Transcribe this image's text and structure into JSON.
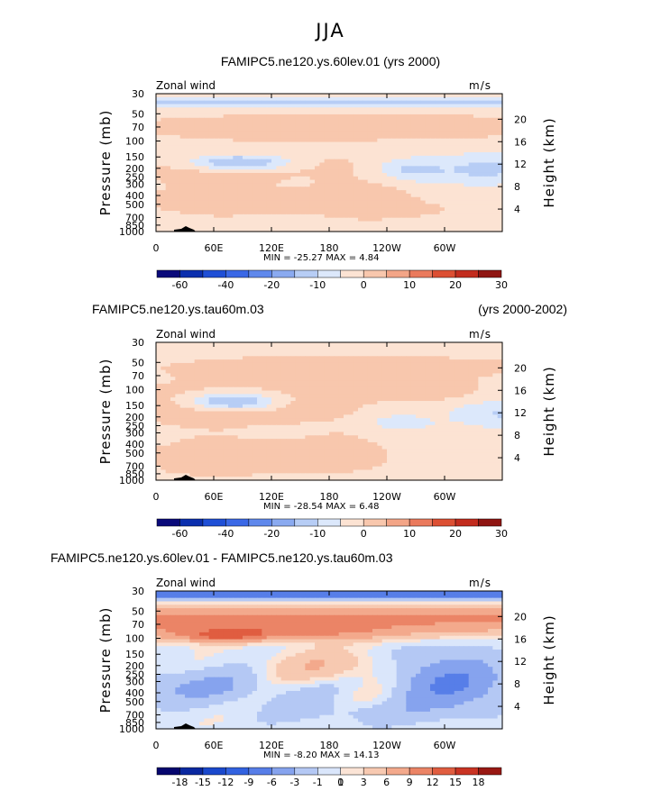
{
  "figure": {
    "title": "JJA",
    "colors": {
      "background": "#ffffff",
      "axis": "#000000",
      "topography": "#000000"
    }
  },
  "palettes": {
    "abs": [
      "#0a0a7a",
      "#0b2fae",
      "#1f4fd6",
      "#3a68e6",
      "#5f88ec",
      "#8aaaf0",
      "#b7cdf5",
      "#dce8fb",
      "#fce3d3",
      "#f8c7ad",
      "#f3a587",
      "#ea7a5d",
      "#dc4f33",
      "#c22c1e",
      "#8f1512"
    ],
    "diff": [
      "#06066e",
      "#0a28a0",
      "#1a48cc",
      "#3262e0",
      "#577ee8",
      "#86a3ee",
      "#b4c8f4",
      "#dae6fb",
      "#fbe4d6",
      "#f7c9b1",
      "#f3a98c",
      "#eb8466",
      "#e05d40",
      "#c93323",
      "#991813"
    ]
  },
  "chart_data": [
    {
      "type": "contour",
      "panel": "FAMIPC5.ne120.ys.60lev.01",
      "title": "FAMIPC5.ne120.ys.60lev.01 (yrs 2000)",
      "title_left": "",
      "title_right": "",
      "variable": "Zonal wind",
      "units": "m/s",
      "ylabel": "Pressure (mb)",
      "ylabel_right": "Height (km)",
      "x_ticks": [
        "0",
        "60E",
        "120E",
        "180",
        "120W",
        "60W"
      ],
      "x_tick_values": [
        0,
        60,
        120,
        180,
        240,
        300
      ],
      "xlim": [
        0,
        360
      ],
      "pressure_ticks": [
        "30",
        "50",
        "70",
        "100",
        "150",
        "200",
        "250",
        "300",
        "400",
        "500",
        "700",
        "850",
        "1000"
      ],
      "pressure_values": [
        30,
        50,
        70,
        100,
        150,
        200,
        250,
        300,
        400,
        500,
        700,
        850,
        1000
      ],
      "height_ticks": [
        "20",
        "16",
        "12",
        "8",
        "4"
      ],
      "height_values": [
        20,
        16,
        12,
        8,
        4
      ],
      "ylim": [
        1000,
        30
      ],
      "min_label": "MIN =  -25.27   MAX =    4.84",
      "min": -25.27,
      "max": 4.84,
      "palette": "abs",
      "colorbar_labels": [
        "-60",
        "-40",
        "-20",
        "-10",
        "0",
        "10",
        "20",
        "30"
      ],
      "colorbar_label_bins": [
        1,
        3,
        5,
        7,
        9,
        11,
        13,
        15
      ],
      "colorbar_levels": [
        -70,
        -60,
        -50,
        -40,
        -30,
        -20,
        -15,
        -10,
        -5,
        0,
        5,
        10,
        15,
        20,
        25,
        30
      ]
    },
    {
      "type": "contour",
      "panel": "FAMIPC5.ne120.ys.tau60m.03",
      "title": "",
      "title_left": "FAMIPC5.ne120.ys.tau60m.03",
      "title_right": "(yrs 2000-2002)",
      "variable": "Zonal wind",
      "units": "m/s",
      "ylabel": "Pressure (mb)",
      "ylabel_right": "Height (km)",
      "x_ticks": [
        "0",
        "60E",
        "120E",
        "180",
        "120W",
        "60W"
      ],
      "x_tick_values": [
        0,
        60,
        120,
        180,
        240,
        300
      ],
      "xlim": [
        0,
        360
      ],
      "pressure_ticks": [
        "30",
        "50",
        "70",
        "100",
        "150",
        "200",
        "250",
        "300",
        "400",
        "500",
        "700",
        "850",
        "1000"
      ],
      "pressure_values": [
        30,
        50,
        70,
        100,
        150,
        200,
        250,
        300,
        400,
        500,
        700,
        850,
        1000
      ],
      "height_ticks": [
        "20",
        "16",
        "12",
        "8",
        "4"
      ],
      "height_values": [
        20,
        16,
        12,
        8,
        4
      ],
      "ylim": [
        1000,
        30
      ],
      "min_label": "MIN =  -28.54   MAX =    6.48",
      "min": -28.54,
      "max": 6.48,
      "palette": "abs",
      "colorbar_labels": [
        "-60",
        "-40",
        "-20",
        "-10",
        "0",
        "10",
        "20",
        "30"
      ],
      "colorbar_label_bins": [
        1,
        3,
        5,
        7,
        9,
        11,
        13,
        15
      ],
      "colorbar_levels": [
        -70,
        -60,
        -50,
        -40,
        -30,
        -20,
        -15,
        -10,
        -5,
        0,
        5,
        10,
        15,
        20,
        25,
        30
      ]
    },
    {
      "type": "contour",
      "panel": "difference",
      "title": "",
      "title_left": "FAMIPC5.ne120.ys.60lev.01 - FAMIPC5.ne120.ys.tau60m.03",
      "title_right": "",
      "variable": "Zonal wind",
      "units": "m/s",
      "ylabel": "Pressure (mb)",
      "ylabel_right": "Height (km)",
      "x_ticks": [
        "0",
        "60E",
        "120E",
        "180",
        "120W",
        "60W"
      ],
      "x_tick_values": [
        0,
        60,
        120,
        180,
        240,
        300
      ],
      "xlim": [
        0,
        360
      ],
      "pressure_ticks": [
        "30",
        "50",
        "70",
        "100",
        "150",
        "200",
        "250",
        "300",
        "400",
        "500",
        "700",
        "850",
        "1000"
      ],
      "pressure_values": [
        30,
        50,
        70,
        100,
        150,
        200,
        250,
        300,
        400,
        500,
        700,
        850,
        1000
      ],
      "height_ticks": [
        "20",
        "16",
        "12",
        "8",
        "4"
      ],
      "height_values": [
        20,
        16,
        12,
        8,
        4
      ],
      "ylim": [
        1000,
        30
      ],
      "min_label": "MIN =   -8.20   MAX =   14.13",
      "min": -8.2,
      "max": 14.13,
      "palette": "diff",
      "colorbar_labels": [
        "-18",
        "-15",
        "-12",
        "-9",
        "-6",
        "-3",
        "-1",
        "0",
        "1",
        "3",
        "6",
        "9",
        "12",
        "15",
        "18"
      ],
      "colorbar_label_bins": [
        1,
        2,
        3,
        4,
        5,
        6,
        7,
        8,
        8,
        9,
        10,
        11,
        12,
        13,
        14
      ],
      "colorbar_levels": [
        -21,
        -18,
        -15,
        -12,
        -9,
        -6,
        -3,
        -1,
        0,
        1,
        3,
        6,
        9,
        12,
        15,
        18
      ]
    }
  ]
}
